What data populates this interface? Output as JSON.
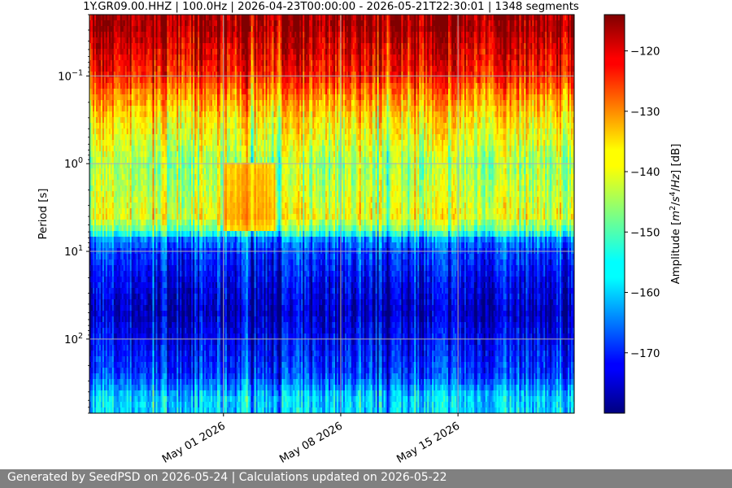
{
  "footer": {
    "text": "Generated by SeedPSD on 2026-05-24 | Calculations updated on 2026-05-22"
  },
  "chart_data": {
    "type": "heatmap",
    "title": "1Y.GR09.00.HHZ | 100.0Hz | 2026-04-23T00:00:00 - 2026-05-21T22:30:01 | 1348 segments",
    "ylabel": "Period [s]",
    "colorbar_label_parts": [
      "Amplitude [",
      "m",
      "2",
      "/",
      "s",
      "4",
      "/",
      "Hz",
      "] [dB]"
    ],
    "x_axis": {
      "type": "date",
      "range": [
        "2026-04-23T00:00:00",
        "2026-05-21T22:30:01"
      ],
      "ticks": [
        {
          "date": "2026-05-01",
          "label": "May 01 2026"
        },
        {
          "date": "2026-05-08",
          "label": "May 08 2026"
        },
        {
          "date": "2026-05-15",
          "label": "May 15 2026"
        }
      ]
    },
    "y_axis": {
      "scale": "log",
      "inverted": true,
      "range": [
        0.02,
        700
      ],
      "ticks": [
        {
          "value": 0.1,
          "base": "10",
          "exp": "−1"
        },
        {
          "value": 1,
          "base": "10",
          "exp": "0"
        },
        {
          "value": 10,
          "base": "10",
          "exp": "1"
        },
        {
          "value": 100,
          "base": "10",
          "exp": "2"
        }
      ]
    },
    "colorbar": {
      "colormap": "jet",
      "range": [
        -180,
        -114
      ],
      "ticks": [
        -120,
        -130,
        -140,
        -150,
        -160,
        -170
      ]
    },
    "grid": true,
    "amplitude_profile_db": [
      {
        "period": 0.02,
        "value": -116
      },
      {
        "period": 0.03,
        "value": -116
      },
      {
        "period": 0.035,
        "value": -118
      },
      {
        "period": 0.06,
        "value": -121
      },
      {
        "period": 0.1,
        "value": -124
      },
      {
        "period": 0.15,
        "value": -130
      },
      {
        "period": 0.3,
        "value": -137
      },
      {
        "period": 0.6,
        "value": -141
      },
      {
        "period": 1,
        "value": -145
      },
      {
        "period": 2,
        "value": -143
      },
      {
        "period": 4,
        "value": -140
      },
      {
        "period": 6,
        "value": -150
      },
      {
        "period": 7,
        "value": -162
      },
      {
        "period": 10,
        "value": -168
      },
      {
        "period": 20,
        "value": -172
      },
      {
        "period": 50,
        "value": -176
      },
      {
        "period": 100,
        "value": -172
      },
      {
        "period": 250,
        "value": -168
      },
      {
        "period": 330,
        "value": -164
      },
      {
        "period": 450,
        "value": -158
      },
      {
        "period": 700,
        "value": -158
      }
    ],
    "anomalies": [
      {
        "start": "2026-05-01T00:00:00",
        "end": "2026-05-04T00:00:00",
        "period_range": [
          1,
          6
        ],
        "value": -128
      }
    ]
  }
}
